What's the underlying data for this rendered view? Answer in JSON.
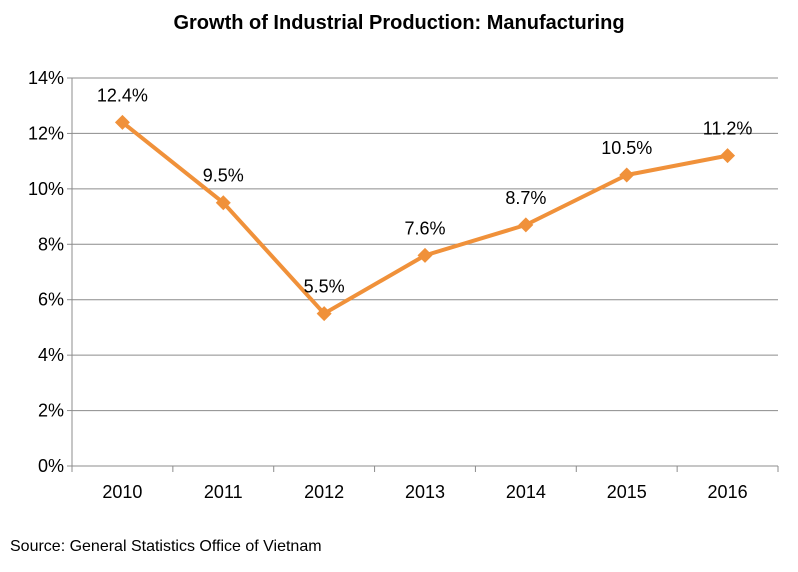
{
  "chart_data": {
    "type": "line",
    "title": "Growth of Industrial Production: Manufacturing",
    "categories": [
      "2010",
      "2011",
      "2012",
      "2013",
      "2014",
      "2015",
      "2016"
    ],
    "series": [
      {
        "name": "Manufacturing",
        "values": [
          12.4,
          9.5,
          5.5,
          7.6,
          8.7,
          10.5,
          11.2
        ],
        "labels": [
          "12.4%",
          "9.5%",
          "5.5%",
          "7.6%",
          "8.7%",
          "10.5%",
          "11.2%"
        ]
      }
    ],
    "ylim": [
      0,
      14
    ],
    "yticks": [
      0,
      2,
      4,
      6,
      8,
      10,
      12,
      14
    ],
    "ytick_labels": [
      "0%",
      "2%",
      "4%",
      "6%",
      "8%",
      "10%",
      "12%",
      "14%"
    ],
    "grid": true,
    "color": "#F0913A",
    "xlabel": "",
    "ylabel": ""
  },
  "source": "Source: General Statistics Office of Vietnam"
}
